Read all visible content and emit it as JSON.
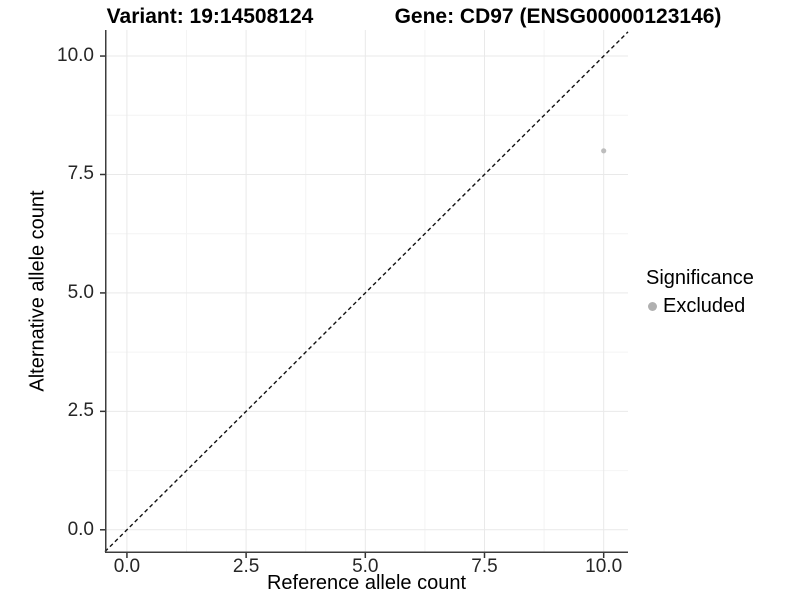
{
  "titles": {
    "variant": "Variant: 19:14508124",
    "gene": "Gene: CD97 (ENSG00000123146)"
  },
  "chart_data": {
    "type": "scatter",
    "title_left": "Variant: 19:14508124",
    "title_right": "Gene: CD97 (ENSG00000123146)",
    "xlabel": "Reference allele count",
    "ylabel": "Alternative allele count",
    "xlim": [
      0,
      10
    ],
    "ylim": [
      0,
      10
    ],
    "x_domain": [
      -0.46,
      10.51
    ],
    "y_domain": [
      -0.49,
      10.55
    ],
    "x_tick_values": [
      0,
      2.5,
      5,
      7.5,
      10
    ],
    "x_tick_labels": [
      "0.0",
      "2.5",
      "5.0",
      "7.5",
      "10.0"
    ],
    "y_tick_values": [
      0,
      2.5,
      5,
      7.5,
      10
    ],
    "y_tick_labels": [
      "0.0",
      "2.5",
      "5.0",
      "7.5",
      "10.0"
    ],
    "x_minor_ticks": [
      1.25,
      3.75,
      6.25,
      8.75
    ],
    "y_minor_ticks": [
      1.25,
      3.75,
      6.25,
      8.75
    ],
    "grid": true,
    "points": [
      {
        "x": 10,
        "y": 8,
        "series": "Excluded"
      }
    ],
    "reference_line": {
      "type": "identity",
      "slope": 1,
      "intercept": 0,
      "style": "dashed",
      "color": "#111111"
    },
    "legend": {
      "title": "Significance",
      "position": "right",
      "entries": [
        {
          "label": "Excluded",
          "color": "#b0b0b0"
        }
      ]
    },
    "colors": {
      "point": "#bdbdbd",
      "grid_major": "#e9e9e9",
      "grid_minor": "#f4f4f4",
      "axis": "#3d3d3d",
      "tick": "#333333"
    }
  }
}
